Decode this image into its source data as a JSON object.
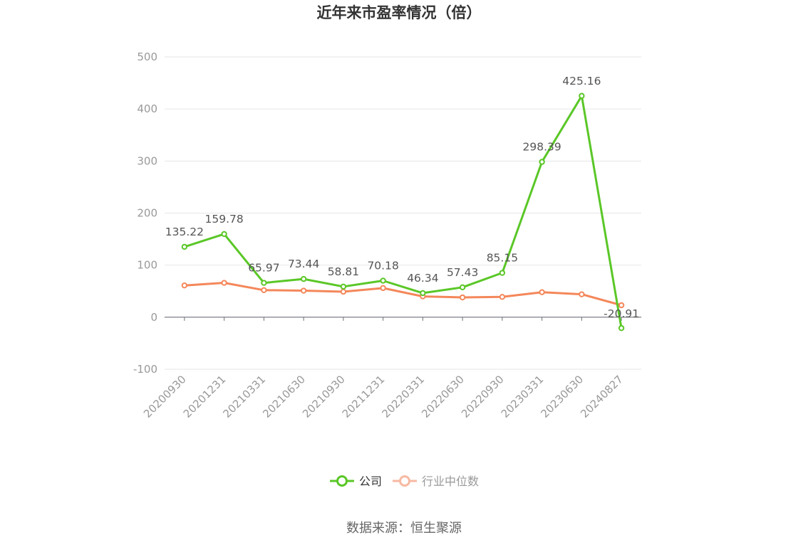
{
  "title": "近年来市盈率情况（倍）",
  "source": "数据来源：恒生聚源",
  "colors": {
    "company": "#5ac727",
    "industry": "#f4875a",
    "industry_legend": "#f7b9a2",
    "grid": "#e6e6e6",
    "axis": "#6e7079"
  },
  "chart_data": {
    "type": "line",
    "title": "近年来市盈率情况（倍）",
    "xlabel": "",
    "ylabel": "",
    "ylim": [
      -100,
      500
    ],
    "yticks": [
      500,
      400,
      300,
      200,
      100,
      0,
      -100
    ],
    "grid": true,
    "legend_position": "bottom",
    "categories": [
      "20200930",
      "20201231",
      "20210331",
      "20210630",
      "20210930",
      "20211231",
      "20220331",
      "20220630",
      "20220930",
      "20230331",
      "20230630",
      "20240827"
    ],
    "series": [
      {
        "name": "公司",
        "values": [
          135.22,
          159.78,
          65.97,
          73.44,
          58.81,
          70.18,
          46.34,
          57.43,
          85.15,
          298.39,
          425.16,
          -20.91
        ],
        "labels": [
          "135.22",
          "159.78",
          "65.97",
          "73.44",
          "58.81",
          "70.18",
          "46.34",
          "57.43",
          "85.15",
          "298.39",
          "425.16",
          "-20.91"
        ]
      },
      {
        "name": "行业中位数",
        "values": [
          61,
          66,
          52,
          51,
          49,
          56,
          40,
          38,
          39,
          48,
          44,
          23
        ]
      }
    ]
  }
}
